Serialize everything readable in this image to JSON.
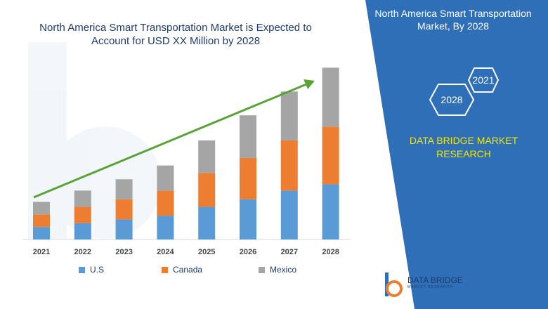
{
  "header": {
    "title": "North America Smart Transportation Market is Expected to Account for USD XX Million by 2028"
  },
  "panel": {
    "title": "North America Smart Transportation Market, By 2028",
    "hex_2021": "2021",
    "hex_2028": "2028",
    "brand": "DATA BRIDGE MARKET RESEARCH",
    "logo_name": "DATA BRIDGE",
    "logo_tagline": "MARKET RESEARCH"
  },
  "colors": {
    "panel_blue": "#2f6fb7",
    "hex_stroke": "#ffffff",
    "arrow": "#5aa339",
    "brand_yellow": "#f5e600"
  },
  "chart_data": {
    "type": "bar",
    "stacked": true,
    "categories": [
      "2021",
      "2022",
      "2023",
      "2024",
      "2025",
      "2026",
      "2027",
      "2028"
    ],
    "series": [
      {
        "name": "U.S",
        "color": "#5b9bd5",
        "values": [
          1.0,
          1.3,
          1.6,
          1.9,
          2.6,
          3.2,
          3.9,
          4.4
        ]
      },
      {
        "name": "Canada",
        "color": "#ed7d31",
        "values": [
          1.0,
          1.3,
          1.6,
          2.0,
          2.7,
          3.3,
          4.0,
          4.6
        ]
      },
      {
        "name": "Mexico",
        "color": "#a5a5a5",
        "values": [
          1.0,
          1.3,
          1.6,
          2.0,
          2.6,
          3.4,
          3.9,
          4.7
        ]
      }
    ],
    "ylim": [
      0,
      14
    ],
    "legend": "bottom",
    "grid": false,
    "trend_arrow": true
  }
}
